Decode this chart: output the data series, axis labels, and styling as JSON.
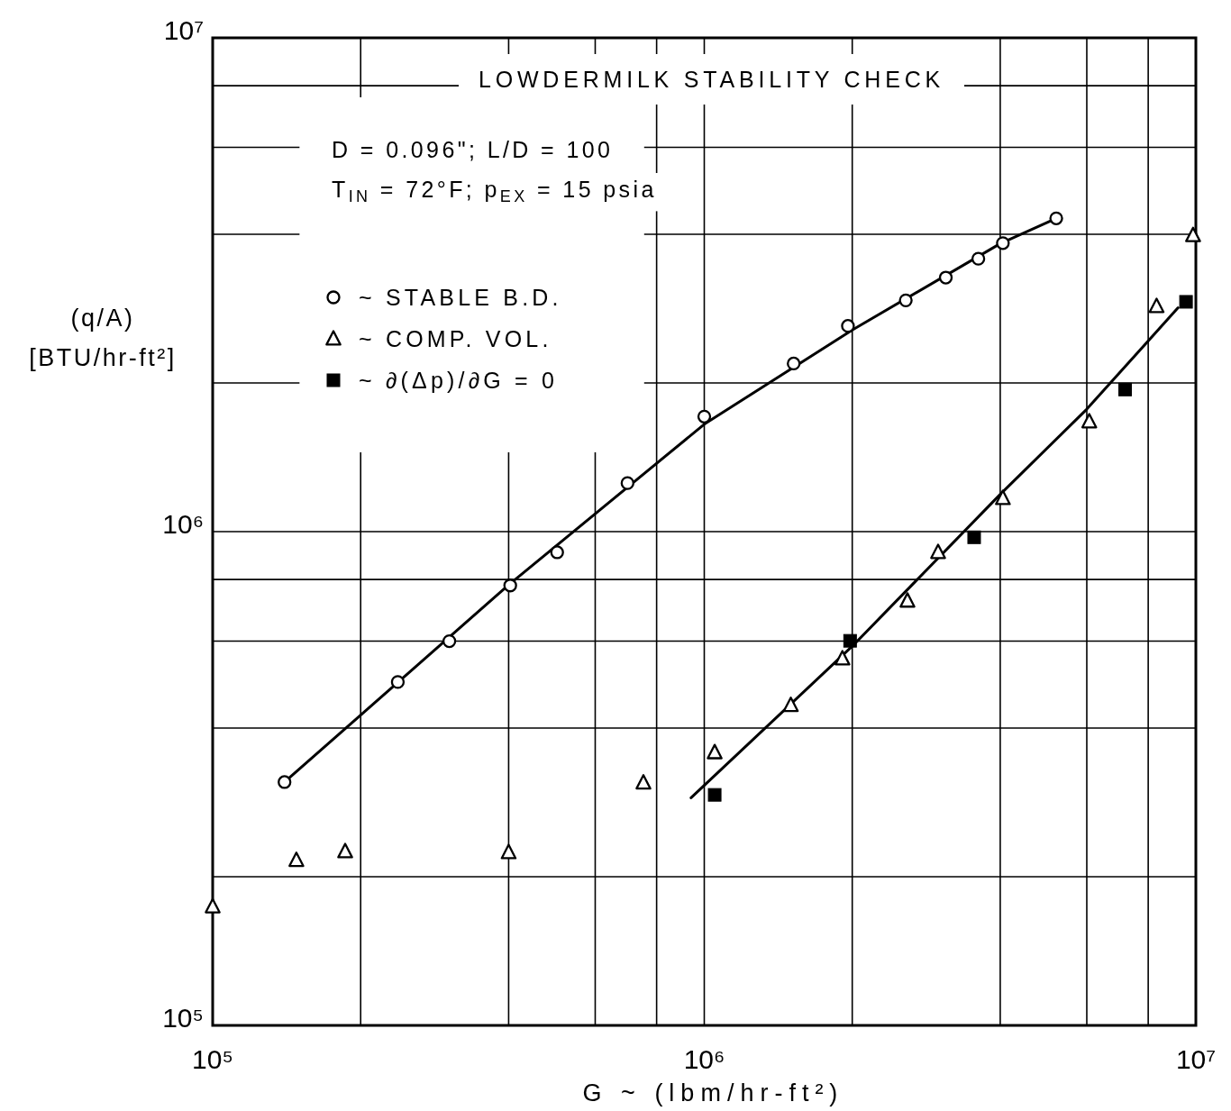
{
  "chart_data": {
    "type": "scatter",
    "title": "LOWDERMILK STABILITY CHECK",
    "xlabel": "G ~ (lbm/hr-ft²)",
    "ylabel": "(q/A)\n[BTU/hr-ft²]",
    "annotations": [
      "D = 0.096\"; L/D = 100",
      "T$_{IN}$ = 72°F; p$_{EX}$ = 15 psia"
    ],
    "log": "xy",
    "xlim": [
      100000,
      10000000
    ],
    "ylim": [
      100000,
      10000000
    ],
    "xticks": [
      {
        "value": 100000,
        "label": "10⁵"
      },
      {
        "value": 200000,
        "label": null
      },
      {
        "value": 400000,
        "label": null
      },
      {
        "value": 600000,
        "label": null
      },
      {
        "value": 800000,
        "label": null
      },
      {
        "value": 1000000,
        "label": "10⁶"
      },
      {
        "value": 2000000,
        "label": null
      },
      {
        "value": 4000000,
        "label": null
      },
      {
        "value": 6000000,
        "label": null
      },
      {
        "value": 8000000,
        "label": null
      },
      {
        "value": 10000000,
        "label": "10⁷"
      }
    ],
    "yticks": [
      {
        "value": 100000,
        "label": "10⁵"
      },
      {
        "value": 200000,
        "label": null
      },
      {
        "value": 400000,
        "label": null
      },
      {
        "value": 600000,
        "label": null
      },
      {
        "value": 800000,
        "label": null
      },
      {
        "value": 1000000,
        "label": "10⁶"
      },
      {
        "value": 2000000,
        "label": null
      },
      {
        "value": 4000000,
        "label": null
      },
      {
        "value": 6000000,
        "label": null
      },
      {
        "value": 8000000,
        "label": null
      },
      {
        "value": 10000000,
        "label": "10⁷"
      }
    ],
    "grid": true,
    "legend": "top left",
    "series": [
      {
        "name": "~ STABLE B.D.",
        "marker": "circle",
        "color": "#000000",
        "x": [
          140000,
          238000,
          303000,
          403000,
          502000,
          698000,
          1000000,
          1520000,
          1960000,
          2570000,
          3100000,
          3610000,
          4050000,
          5200000
        ],
        "values": [
          311000,
          496000,
          600000,
          778000,
          908000,
          1254000,
          1710000,
          2190000,
          2610000,
          2940000,
          3270000,
          3570000,
          3840000,
          4310000
        ]
      },
      {
        "name": "~ COMP. VOL.",
        "marker": "triangle",
        "color": "#000000",
        "x": [
          100000,
          148000,
          186000,
          400000,
          752000,
          1050000,
          1500000,
          1910000,
          2590000,
          2990000,
          4050000,
          6070000,
          8320000,
          9870000
        ],
        "values": [
          174000,
          216000,
          225000,
          224000,
          310000,
          357000,
          445000,
          553000,
          724000,
          908000,
          1168000,
          1670000,
          2860000,
          3980000
        ]
      },
      {
        "name": "~ ∂(Δp)/∂G = 0",
        "marker": "square",
        "color": "#000000",
        "x": [
          1050000,
          1980000,
          3540000,
          7180000,
          9550000
        ],
        "values": [
          293000,
          601000,
          974000,
          1940000,
          2920000
        ]
      },
      {
        "type": "line",
        "marker": "none",
        "color": "#000000",
        "x": [
          140000,
          200000,
          400000,
          1000000,
          2000000,
          4000000,
          5200000
        ],
        "values": [
          311000,
          425000,
          780000,
          1650000,
          2560000,
          3830000,
          4310000
        ]
      },
      {
        "type": "line",
        "marker": "none",
        "color": "#000000",
        "x": [
          940000,
          2000000,
          4000000,
          6000000,
          9200000
        ],
        "values": [
          289000,
          586000,
          1190000,
          1770000,
          2840000
        ]
      }
    ]
  }
}
